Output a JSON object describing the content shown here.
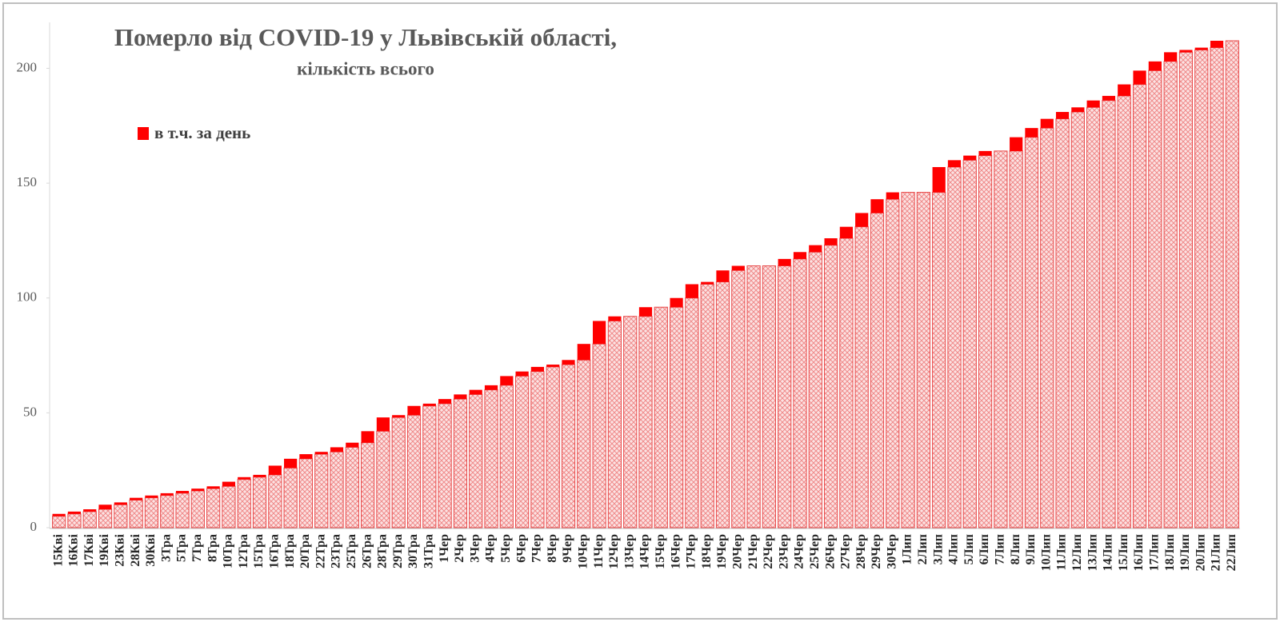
{
  "chart_data": {
    "type": "stacked_bar",
    "title": "Померло від COVID-19 у Львівській області,",
    "subtitle": "кількість всього",
    "categories": [
      "15Кві",
      "16Кві",
      "17Кві",
      "19Кві",
      "23Кві",
      "28Кві",
      "30Кві",
      "3Тра",
      "5Тра",
      "7Тра",
      "8Тра",
      "10Тра",
      "12Тра",
      "15Тра",
      "16Тра",
      "18Тра",
      "20Тра",
      "22Тра",
      "23Тра",
      "25Тра",
      "26Тра",
      "28Тра",
      "29Тра",
      "30Тра",
      "31Тра",
      "1Чер",
      "2Чер",
      "3Чер",
      "4Чер",
      "5Чер",
      "6Чер",
      "7Чер",
      "8Чер",
      "9Чер",
      "10Чер",
      "11Чер",
      "12Чер",
      "13Чер",
      "14Чер",
      "15Чер",
      "16Чер",
      "17Чер",
      "18Чер",
      "19Чер",
      "20Чер",
      "21Чер",
      "22Чер",
      "23Чер",
      "24Чер",
      "25Чер",
      "26Чер",
      "27Чер",
      "28Чер",
      "29Чер",
      "30Чер",
      "1Лип",
      "2Лип",
      "3Лип",
      "4Лип",
      "5Лип",
      "6Лип",
      "7Лип",
      "8Лип",
      "9Лип",
      "10Лип",
      "11Лип",
      "12Лип",
      "13Лип",
      "14Лип",
      "15Лип",
      "16Лип",
      "17Лип",
      "18Лип",
      "19Лип",
      "20Лип",
      "21Лип",
      "22Лип"
    ],
    "series": [
      {
        "color": "#f4b8b8",
        "values": [
          5,
          6,
          7,
          8,
          10,
          12,
          13,
          14,
          15,
          16,
          17,
          18,
          21,
          22,
          23,
          26,
          30,
          32,
          33,
          35,
          37,
          42,
          48,
          49,
          53,
          54,
          56,
          58,
          60,
          62,
          66,
          68,
          70,
          71,
          73,
          80,
          90,
          92,
          92,
          96,
          96,
          100,
          106,
          107,
          112,
          114,
          114,
          114,
          117,
          120,
          123,
          126,
          131,
          137,
          143,
          146,
          146,
          146,
          157,
          160,
          162,
          164,
          164,
          170,
          174,
          178,
          181,
          183,
          186,
          188,
          193,
          199,
          203,
          207,
          208,
          209,
          212
        ]
      },
      {
        "name": "в т.ч. за день",
        "color": "#ff0000",
        "values": [
          1,
          1,
          1,
          2,
          1,
          1,
          1,
          1,
          1,
          1,
          1,
          2,
          1,
          1,
          4,
          4,
          2,
          1,
          2,
          2,
          5,
          6,
          1,
          4,
          1,
          2,
          2,
          2,
          2,
          4,
          2,
          2,
          1,
          2,
          7,
          10,
          2,
          0,
          4,
          0,
          4,
          6,
          1,
          5,
          2,
          0,
          0,
          3,
          3,
          3,
          3,
          5,
          6,
          6,
          3,
          0,
          0,
          11,
          3,
          2,
          2,
          0,
          6,
          4,
          4,
          3,
          2,
          3,
          2,
          5,
          6,
          4,
          4,
          1,
          1,
          3,
          0
        ]
      }
    ],
    "ylim": [
      0,
      220
    ],
    "yticks": [
      0,
      50,
      100,
      150,
      200
    ]
  }
}
